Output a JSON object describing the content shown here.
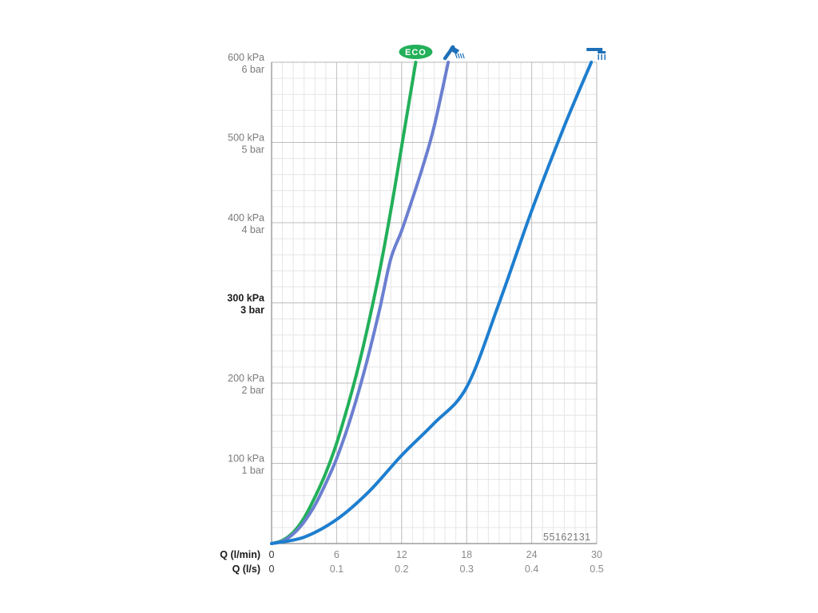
{
  "chart_data": {
    "type": "line",
    "title": "",
    "x_axes": [
      {
        "label": "Q (l/min)",
        "ticks": [
          "0",
          "6",
          "12",
          "18",
          "24",
          "30"
        ],
        "range": [
          0,
          30
        ]
      },
      {
        "label": "Q (l/s)",
        "ticks": [
          "0",
          "0.1",
          "0.2",
          "0.3",
          "0.4",
          "0.5"
        ],
        "range": [
          0,
          0.5
        ]
      }
    ],
    "y_axis": {
      "range": [
        0,
        600
      ],
      "ticks": [
        {
          "value": 600,
          "kpa": "600 kPa",
          "bar": "6 bar",
          "bold": false
        },
        {
          "value": 500,
          "kpa": "500 kPa",
          "bar": "5 bar",
          "bold": false
        },
        {
          "value": 400,
          "kpa": "400 kPa",
          "bar": "4 bar",
          "bold": false
        },
        {
          "value": 300,
          "kpa": "300 kPa",
          "bar": "3 bar",
          "bold": true
        },
        {
          "value": 200,
          "kpa": "200 kPa",
          "bar": "2 bar",
          "bold": false
        },
        {
          "value": 100,
          "kpa": "100 kPa",
          "bar": "1 bar",
          "bold": false
        }
      ]
    },
    "grid": true,
    "series": [
      {
        "color": "#22b05a",
        "icon": "eco-badge-icon",
        "x": [
          0,
          1,
          2,
          3,
          4,
          5,
          6,
          7,
          8,
          9,
          10,
          11,
          12,
          13.3
        ],
        "y": [
          0,
          4,
          14,
          32,
          58,
          88,
          125,
          170,
          220,
          278,
          342,
          415,
          495,
          600
        ]
      },
      {
        "color": "#6b7fd0",
        "icon": "hand-shower-icon",
        "x": [
          0,
          1,
          2,
          3,
          4,
          5,
          6,
          7,
          8,
          9,
          10,
          11,
          12,
          13,
          14,
          15,
          16.3
        ],
        "y": [
          0,
          3,
          12,
          27,
          48,
          75,
          106,
          144,
          188,
          238,
          294,
          355,
          390,
          430,
          472,
          520,
          600
        ]
      },
      {
        "color": "#1e7ecf",
        "icon": "overhead-shower-icon",
        "x": [
          0,
          3,
          6,
          9,
          12,
          15,
          18,
          21,
          24,
          27,
          29.5
        ],
        "y": [
          0,
          8,
          30,
          65,
          110,
          150,
          195,
          300,
          415,
          520,
          600
        ]
      }
    ]
  },
  "chart_labels": {
    "code": "55162131",
    "eco_badge_text": "ECO"
  }
}
